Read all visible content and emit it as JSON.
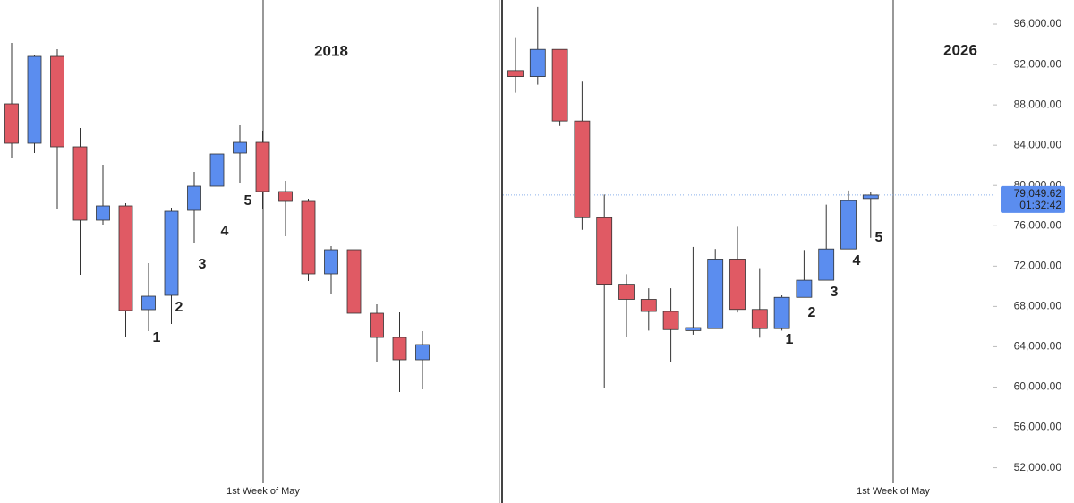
{
  "charts": [
    {
      "type": "candlestick",
      "title": "2018",
      "event_label": "1st Week of May",
      "wave_labels": [
        "1",
        "2",
        "3",
        "4",
        "5"
      ],
      "ylim": [
        0,
        562
      ],
      "up_color": "#5b8def",
      "down_color": "#e05a64",
      "open": [
        446,
        402,
        499,
        398,
        316,
        332,
        216,
        232,
        327,
        354,
        391,
        403,
        348,
        337,
        256,
        283,
        212,
        185,
        160
      ],
      "high": [
        514,
        500,
        507,
        419,
        378,
        335,
        268,
        330,
        370,
        411,
        422,
        416,
        360,
        340,
        287,
        285,
        222,
        213,
        192
      ],
      "low": [
        385,
        391,
        328,
        255,
        311,
        186,
        192,
        200,
        291,
        346,
        357,
        328,
        298,
        248,
        233,
        202,
        158,
        124,
        127
      ],
      "close": [
        402,
        499,
        398,
        316,
        332,
        215,
        231,
        326,
        354,
        390,
        403,
        348,
        337,
        256,
        283,
        212,
        185,
        160,
        177
      ]
    },
    {
      "type": "candlestick",
      "title": "2026",
      "event_label": "1st Week of May",
      "wave_labels": [
        "1",
        "2",
        "3",
        "4",
        "5"
      ],
      "ylim": [
        48500,
        98400
      ],
      "yticks": [
        {
          "value": 96000,
          "label": "96,000.00"
        },
        {
          "value": 92000,
          "label": "92,000.00"
        },
        {
          "value": 88000,
          "label": "88,000.00"
        },
        {
          "value": 84000,
          "label": "84,000.00"
        },
        {
          "value": 80000,
          "label": "80,000.00"
        },
        {
          "value": 76000,
          "label": "76,000.00"
        },
        {
          "value": 72000,
          "label": "72,000.00"
        },
        {
          "value": 68000,
          "label": "68,000.00"
        },
        {
          "value": 64000,
          "label": "64,000.00"
        },
        {
          "value": 60000,
          "label": "60,000.00"
        },
        {
          "value": 56000,
          "label": "56,000.00"
        },
        {
          "value": 52000,
          "label": "52,000.00"
        }
      ],
      "last_price": {
        "value": 79049.62,
        "label": "79,049.62"
      },
      "countdown": "01:32:42",
      "up_color": "#5b8def",
      "down_color": "#e05a64",
      "open": [
        91400,
        90800,
        93500,
        86400,
        76800,
        70200,
        68700,
        67500,
        65600,
        65800,
        72700,
        67700,
        65800,
        68900,
        70600,
        73700,
        78700
      ],
      "high": [
        94700,
        97700,
        93500,
        90300,
        79100,
        71200,
        69800,
        69800,
        73900,
        73700,
        75900,
        71800,
        69100,
        73600,
        78100,
        79500,
        79400
      ],
      "low": [
        89200,
        90000,
        85900,
        75600,
        59900,
        65000,
        65600,
        62500,
        65200,
        65800,
        67400,
        64900,
        65600,
        68900,
        70600,
        73700,
        74800
      ],
      "close": [
        90800,
        93500,
        86400,
        76800,
        70200,
        68700,
        67500,
        65700,
        65900,
        72700,
        67700,
        65800,
        68900,
        70600,
        73700,
        78500,
        79050
      ]
    }
  ]
}
